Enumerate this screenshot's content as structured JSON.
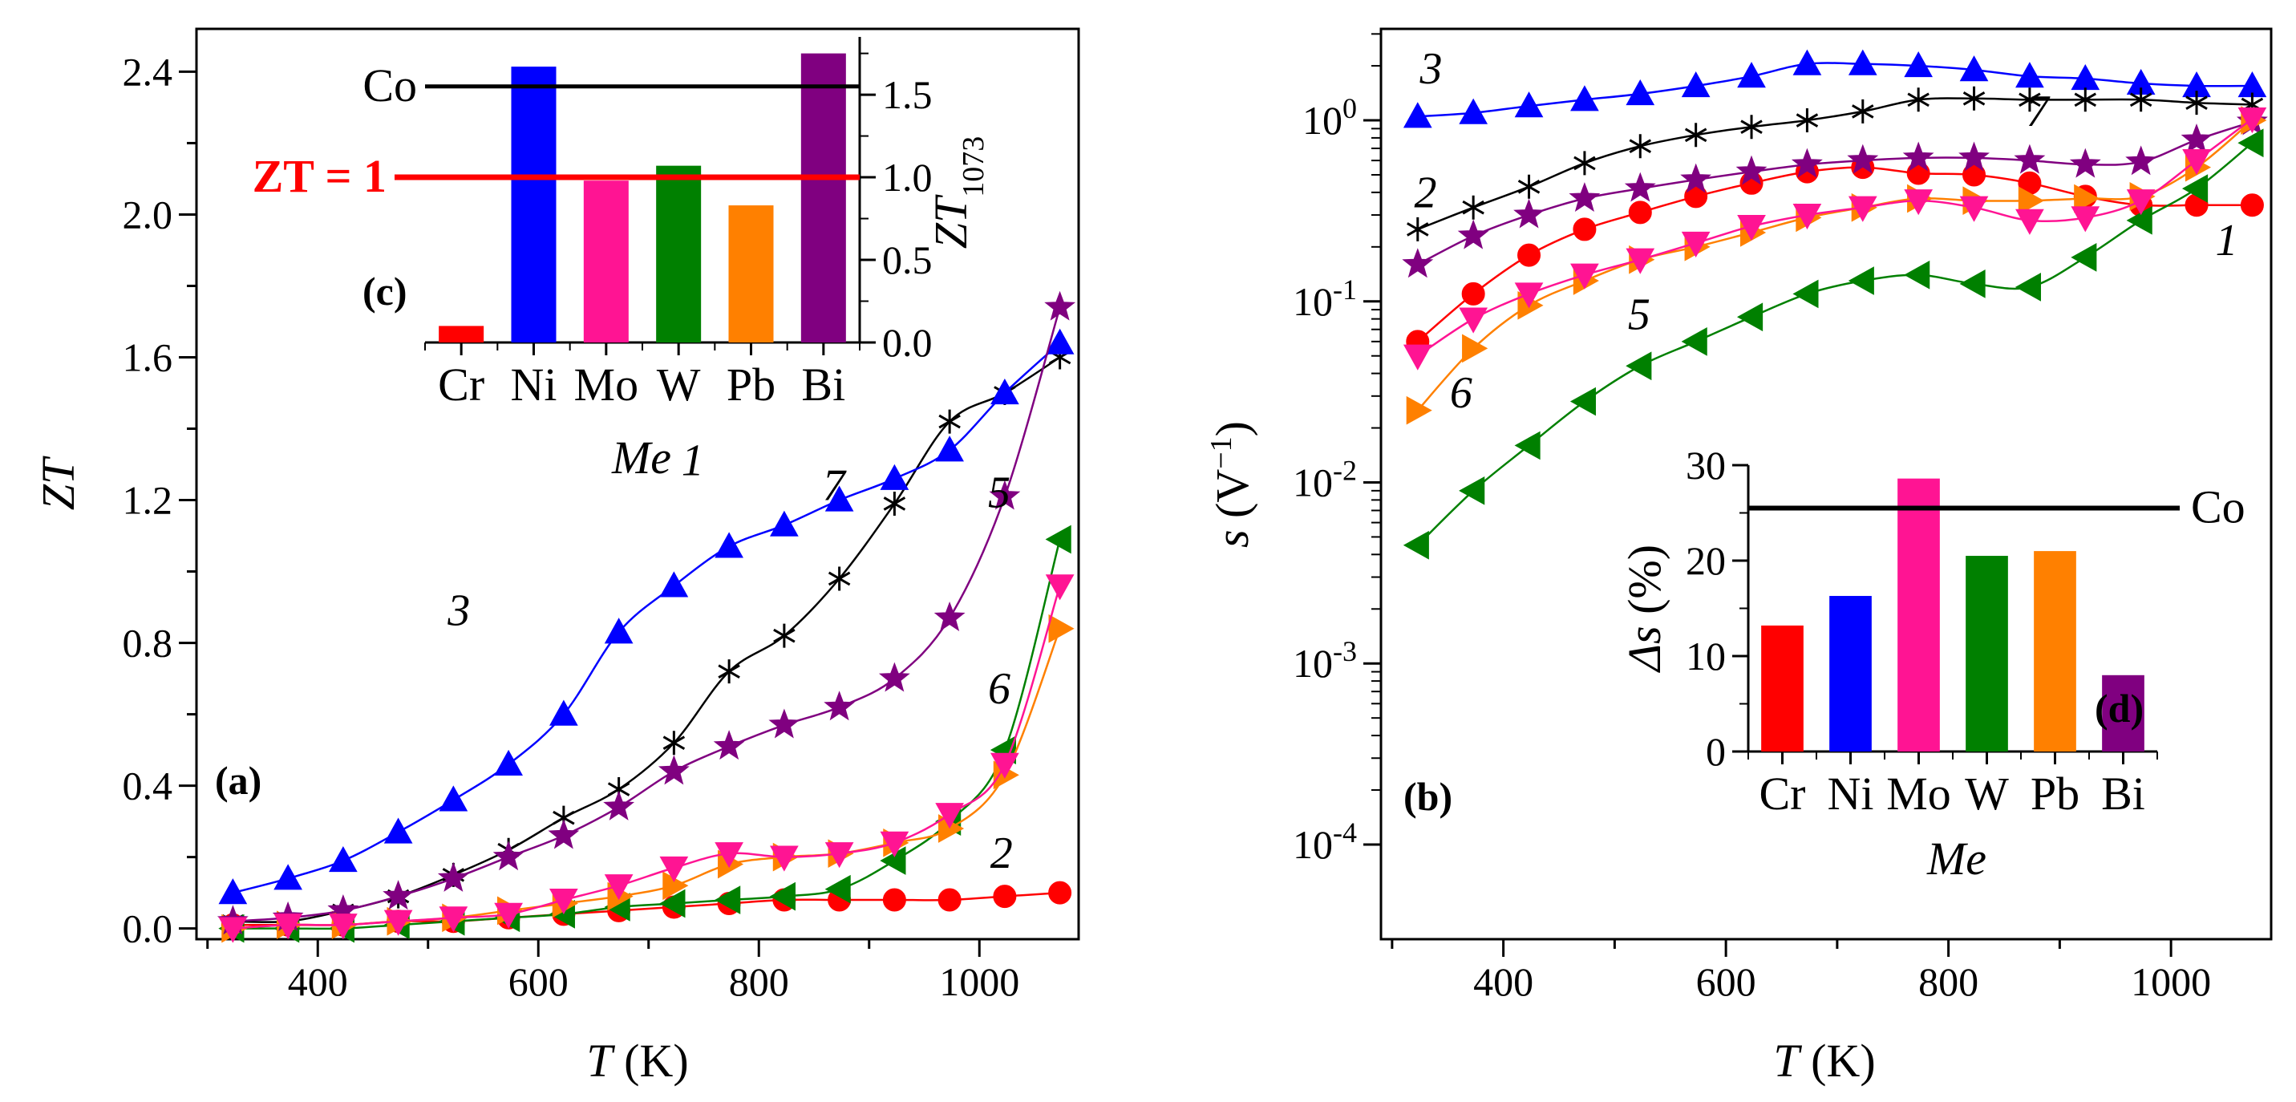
{
  "chart_data": [
    {
      "id": "a",
      "type": "line",
      "panel_label": "(a)",
      "xlabel_var": "T",
      "xlabel_unit": " (K)",
      "ylabel": "ZT",
      "xlim": [
        290,
        1090
      ],
      "ylim": [
        -0.03,
        2.52
      ],
      "xticks": [
        400,
        600,
        800,
        1000
      ],
      "yticks": [
        0.0,
        0.4,
        0.8,
        1.2,
        1.6,
        2.0,
        2.4
      ],
      "ytick_labels": [
        "0.0",
        "0.4",
        "0.8",
        "1.2",
        "1.6",
        "2.0",
        "2.4"
      ],
      "x": [
        323,
        373,
        423,
        473,
        523,
        573,
        623,
        673,
        723,
        773,
        823,
        873,
        923,
        973,
        1023,
        1073
      ],
      "series": [
        {
          "label": "1",
          "color": "#000000",
          "marker": "asterisk",
          "values": [
            0.02,
            0.02,
            0.05,
            0.09,
            0.15,
            0.22,
            0.31,
            0.39,
            0.52,
            0.72,
            0.82,
            0.98,
            1.19,
            1.42,
            1.5,
            1.6
          ],
          "label_pos": [
            740,
            1.27
          ]
        },
        {
          "label": "2",
          "color": "#ff0000",
          "marker": "circle",
          "values": [
            0.01,
            0.01,
            0.01,
            0.02,
            0.02,
            0.03,
            0.04,
            0.05,
            0.06,
            0.07,
            0.08,
            0.08,
            0.08,
            0.08,
            0.09,
            0.1
          ],
          "label_pos": [
            1020,
            0.17
          ]
        },
        {
          "label": "3",
          "color": "#0000ff",
          "marker": "triangle-up",
          "values": [
            0.1,
            0.14,
            0.19,
            0.27,
            0.36,
            0.46,
            0.6,
            0.83,
            0.96,
            1.07,
            1.13,
            1.2,
            1.26,
            1.34,
            1.5,
            1.64
          ],
          "label_pos": [
            528,
            0.85
          ]
        },
        {
          "label": "5",
          "color": "#008000",
          "marker": "triangle-left",
          "values": [
            0.0,
            0.0,
            0.0,
            0.01,
            0.02,
            0.03,
            0.04,
            0.06,
            0.07,
            0.08,
            0.09,
            0.11,
            0.19,
            0.3,
            0.5,
            1.09
          ],
          "label_pos": [
            1018,
            1.18
          ]
        },
        {
          "label": "6",
          "color": "#ff8000",
          "marker": "triangle-right",
          "values": [
            0.0,
            0.01,
            0.01,
            0.02,
            0.03,
            0.05,
            0.07,
            0.09,
            0.12,
            0.18,
            0.2,
            0.21,
            0.24,
            0.28,
            0.43,
            0.84
          ],
          "label_pos": [
            1018,
            0.63
          ]
        },
        {
          "label": "7",
          "color": "#800080",
          "marker": "star",
          "values": [
            0.02,
            0.03,
            0.05,
            0.09,
            0.14,
            0.2,
            0.26,
            0.34,
            0.44,
            0.51,
            0.57,
            0.62,
            0.7,
            0.87,
            1.21,
            1.74
          ],
          "label_pos": [
            868,
            1.2
          ]
        },
        {
          "label": "",
          "color": "#ff1493",
          "marker": "triangle-down",
          "values": [
            0.0,
            0.01,
            0.01,
            0.02,
            0.03,
            0.04,
            0.08,
            0.12,
            0.17,
            0.21,
            0.2,
            0.21,
            0.24,
            0.32,
            0.46,
            0.96
          ],
          "label_pos": null
        }
      ]
    },
    {
      "id": "c",
      "type": "bar",
      "inset_of": "a",
      "panel_label": "(c)",
      "categories": [
        "Cr",
        "Ni",
        "Mo",
        "W",
        "Pb",
        "Bi"
      ],
      "values": [
        0.1,
        1.67,
        0.98,
        1.07,
        0.83,
        1.75
      ],
      "colors": [
        "#ff0000",
        "#0000ff",
        "#ff1493",
        "#008000",
        "#ff8000",
        "#800080"
      ],
      "xlabel": "Me",
      "ylabel_main": "ZT",
      "ylabel_sub": "1073",
      "ylim": [
        0,
        1.85
      ],
      "yticks": [
        0.0,
        0.5,
        1.0,
        1.5
      ],
      "ytick_labels": [
        "0.0",
        "0.5",
        "1.0",
        "1.5"
      ],
      "reference_lines": [
        {
          "label": "Co",
          "value": 1.55,
          "color": "#000000"
        },
        {
          "label": "ZT = 1",
          "value": 1.0,
          "color": "#ff0000"
        }
      ]
    },
    {
      "id": "b",
      "type": "line",
      "yscale": "log",
      "panel_label": "(b)",
      "xlabel_var": "T",
      "xlabel_unit": " (K)",
      "ylabel_var": "s",
      "ylabel_unit": " (V",
      "ylabel_sup": "−1",
      "ylabel_close": ")",
      "xlim": [
        290,
        1090
      ],
      "ylim": [
        3e-05,
        3.2
      ],
      "xticks": [
        400,
        600,
        800,
        1000
      ],
      "yticks_exp": [
        -4,
        -3,
        -2,
        -1,
        0
      ],
      "x": [
        323,
        373,
        423,
        473,
        523,
        573,
        623,
        673,
        723,
        773,
        823,
        873,
        923,
        973,
        1023,
        1073
      ],
      "series": [
        {
          "label": "1",
          "color": "#ff0000",
          "marker": "circle",
          "values": [
            0.06,
            0.11,
            0.18,
            0.25,
            0.31,
            0.38,
            0.45,
            0.52,
            0.55,
            0.51,
            0.5,
            0.45,
            0.38,
            0.34,
            0.34,
            0.34
          ],
          "label_pos": [
            1050,
            0.18
          ]
        },
        {
          "label": "2",
          "color": "#800080",
          "marker": "star",
          "values": [
            0.16,
            0.23,
            0.3,
            0.37,
            0.42,
            0.47,
            0.52,
            0.57,
            0.6,
            0.62,
            0.62,
            0.6,
            0.57,
            0.59,
            0.78,
            0.98
          ],
          "label_pos": [
            330,
            0.33
          ]
        },
        {
          "label": "3",
          "color": "#0000ff",
          "marker": "triangle-up",
          "values": [
            1.05,
            1.1,
            1.2,
            1.3,
            1.4,
            1.55,
            1.75,
            2.05,
            2.05,
            2.0,
            1.9,
            1.75,
            1.7,
            1.6,
            1.55,
            1.55
          ],
          "label_pos": [
            335,
            1.6
          ]
        },
        {
          "label": "5",
          "color": "#008000",
          "marker": "triangle-left",
          "values": [
            0.0045,
            0.009,
            0.016,
            0.028,
            0.044,
            0.06,
            0.082,
            0.11,
            0.13,
            0.14,
            0.125,
            0.12,
            0.175,
            0.28,
            0.42,
            0.75
          ],
          "label_pos": [
            522,
            0.07
          ]
        },
        {
          "label": "6",
          "color": "#ff8000",
          "marker": "triangle-right",
          "values": [
            0.025,
            0.055,
            0.095,
            0.13,
            0.17,
            0.2,
            0.24,
            0.29,
            0.33,
            0.37,
            0.36,
            0.36,
            0.37,
            0.38,
            0.55,
            1.0
          ],
          "label_pos": [
            362,
            0.026
          ]
        },
        {
          "label": "7",
          "color": "#000000",
          "marker": "asterisk",
          "values": [
            0.25,
            0.33,
            0.43,
            0.58,
            0.72,
            0.83,
            0.92,
            1.0,
            1.12,
            1.3,
            1.32,
            1.3,
            1.3,
            1.3,
            1.25,
            1.22
          ],
          "label_pos": [
            880,
            0.93
          ]
        },
        {
          "label": "",
          "color": "#ff1493",
          "marker": "triangle-down",
          "values": [
            0.05,
            0.08,
            0.11,
            0.14,
            0.17,
            0.21,
            0.26,
            0.3,
            0.33,
            0.36,
            0.33,
            0.28,
            0.29,
            0.36,
            0.6,
            1.02
          ],
          "label_pos": null
        }
      ]
    },
    {
      "id": "d",
      "type": "bar",
      "inset_of": "b",
      "panel_label": "(d)",
      "categories": [
        "Cr",
        "Ni",
        "Mo",
        "W",
        "Pb",
        "Bi"
      ],
      "values": [
        13.2,
        16.3,
        28.6,
        20.5,
        21.0,
        8.0
      ],
      "colors": [
        "#ff0000",
        "#0000ff",
        "#ff1493",
        "#008000",
        "#ff8000",
        "#800080"
      ],
      "xlabel": "Me",
      "ylabel_var": "Δs",
      "ylabel_unit": " (%)",
      "ylim": [
        0,
        30
      ],
      "yticks": [
        0,
        10,
        20,
        30
      ],
      "ytick_labels": [
        "0",
        "10",
        "20",
        "30"
      ],
      "reference_lines": [
        {
          "label": "Co",
          "value": 25.5,
          "color": "#000000"
        }
      ]
    }
  ]
}
